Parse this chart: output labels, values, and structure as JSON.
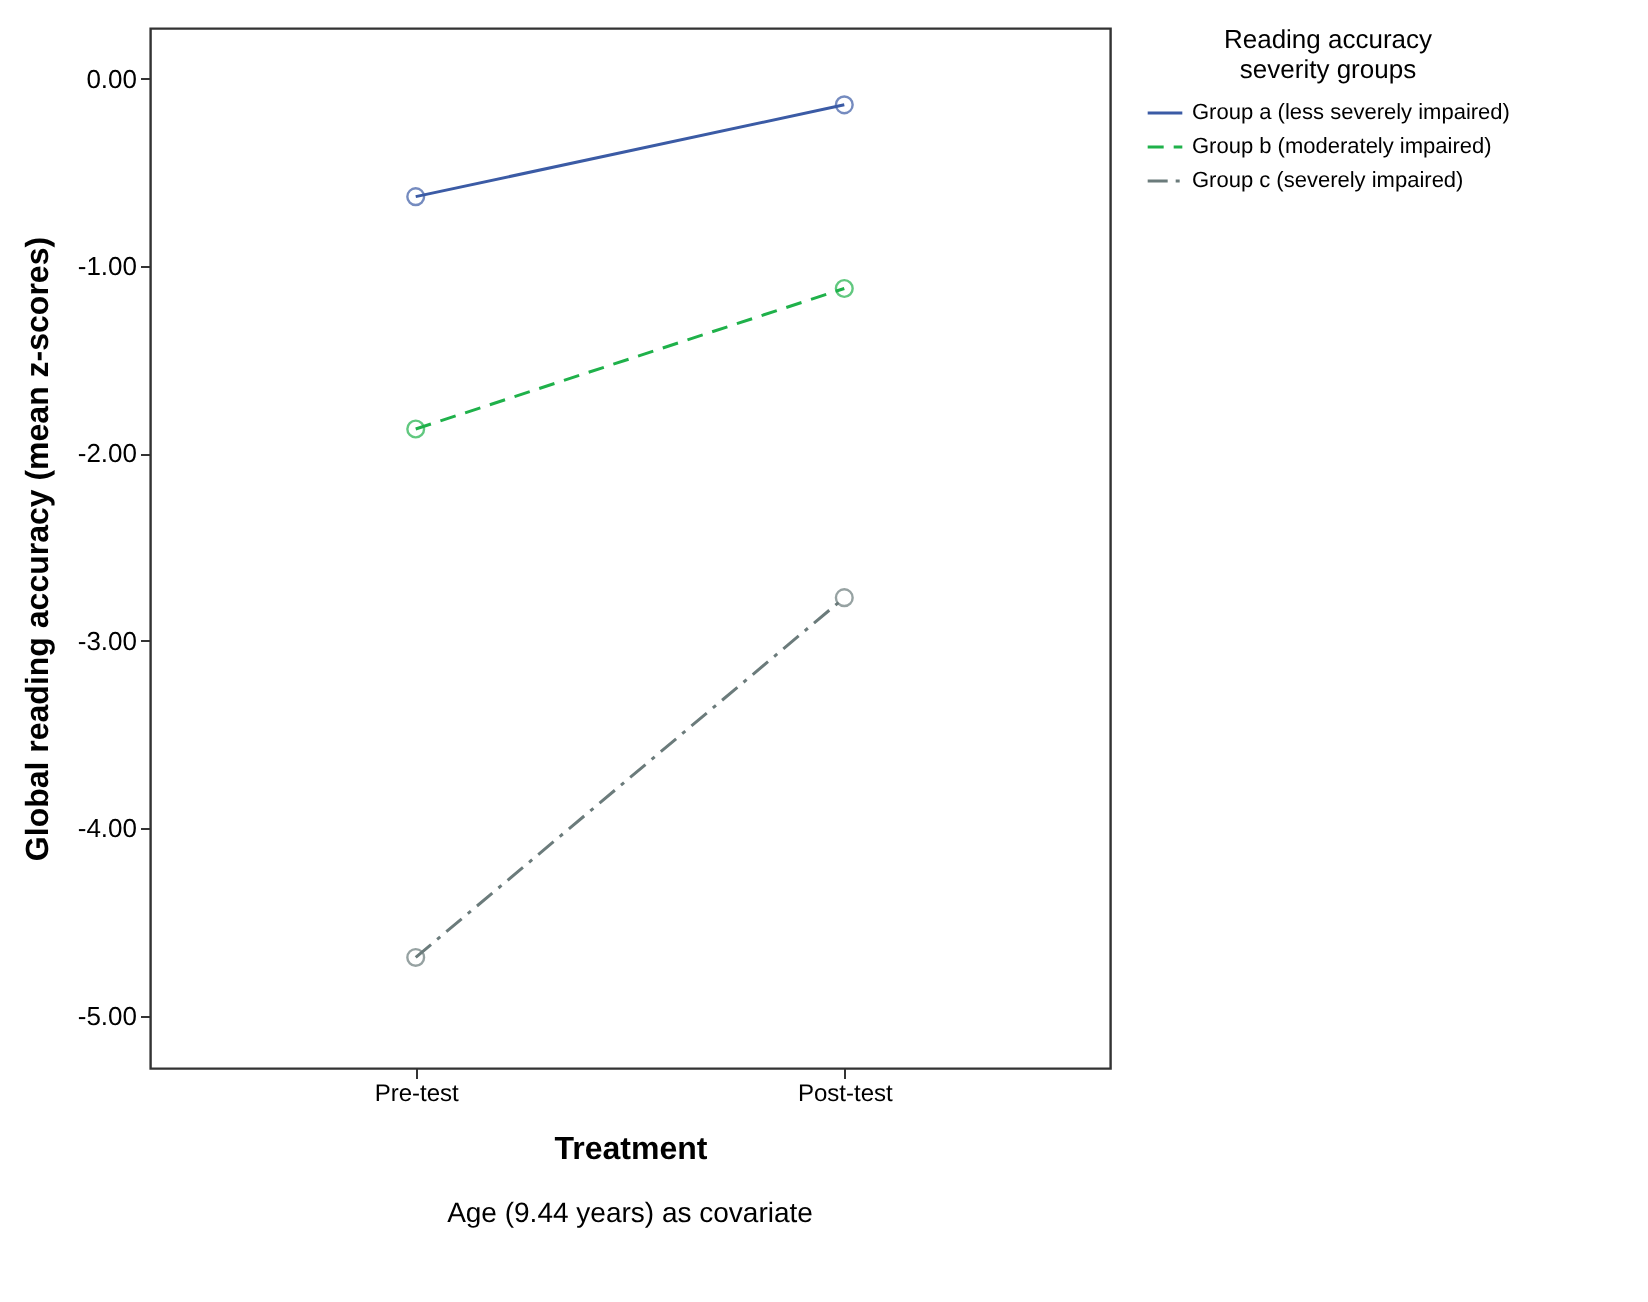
{
  "chart_data": {
    "type": "line",
    "xlabel": "Treatment",
    "ylabel": "Global reading accuracy (mean z-scores)",
    "legend_title": "Reading accuracy severity groups",
    "annotations": [
      "Age (9.44 years) as covariate"
    ],
    "categories": [
      "Pre-test",
      "Post-test"
    ],
    "series": [
      {
        "name": "Group a (less severely impaired)",
        "color": "#3b5ba5",
        "values": [
          -0.63,
          -0.14
        ],
        "line_style": "solid"
      },
      {
        "name": "Group b (moderately impaired)",
        "color": "#1fb14a",
        "values": [
          -1.87,
          -1.12
        ],
        "line_style": "dashed"
      },
      {
        "name": "Group c (severely impaired)",
        "color": "#6b7b7b",
        "values": [
          -4.69,
          -2.77
        ],
        "line_style": "dashdot"
      }
    ],
    "ylim": [
      -5.28,
      0.27
    ],
    "yticks": [
      {
        "value": 0,
        "label": "0.00"
      },
      {
        "value": -1,
        "label": "-1.00"
      },
      {
        "value": -2,
        "label": "-2.00"
      },
      {
        "value": -3,
        "label": "-3.00"
      },
      {
        "value": -4,
        "label": "-4.00"
      },
      {
        "value": -5,
        "label": "-5.00"
      }
    ],
    "grid": false,
    "legend": "top right",
    "marker": "circle"
  }
}
